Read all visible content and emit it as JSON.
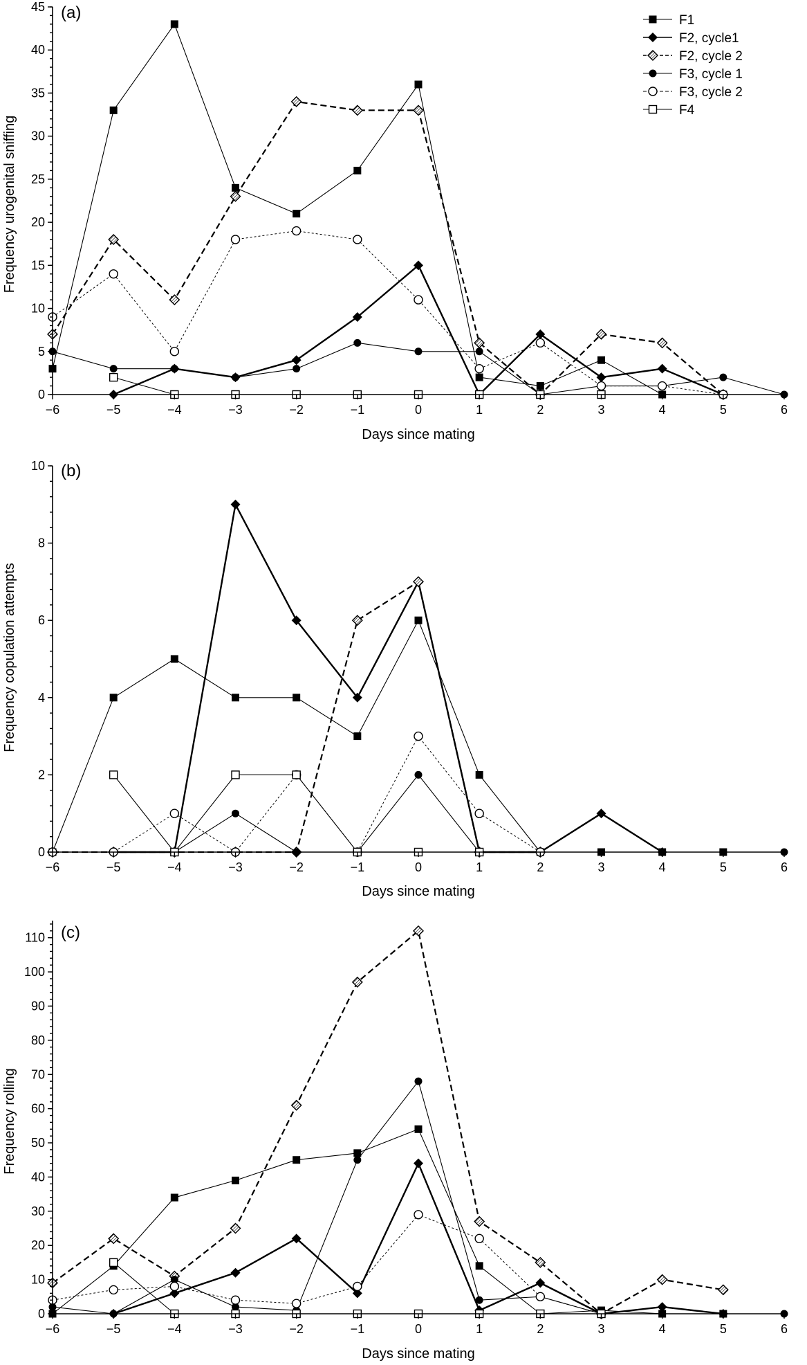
{
  "chart_data": [
    {
      "type": "line",
      "panel_label": "(a)",
      "xlabel": "Days since mating",
      "ylabel": "Frequency urogenital sniffing",
      "xlim": [
        -6,
        6
      ],
      "ylim": [
        0,
        45
      ],
      "xticks": [
        -6,
        -5,
        -4,
        -3,
        -2,
        -1,
        0,
        1,
        2,
        3,
        4,
        5,
        6
      ],
      "xtick_labels": [
        "−6",
        "−5",
        "−4",
        "−3",
        "−2",
        "−1",
        "0",
        "1",
        "2",
        "3",
        "4",
        "5",
        "6"
      ],
      "yticks": [
        0,
        5,
        10,
        15,
        20,
        25,
        30,
        35,
        40,
        45
      ],
      "ytick_labels": [
        "0",
        "5",
        "10",
        "15",
        "20",
        "25",
        "30",
        "35",
        "40",
        "45"
      ],
      "minor_yticks": true,
      "grid": false,
      "legend": {
        "placement": "top-right",
        "entries": [
          "F1",
          "F2, cycle1",
          "F2, cycle 2",
          "F3, cycle 1",
          "F3, cycle 2",
          "F4"
        ]
      },
      "series": [
        {
          "name": "F1",
          "marker": "filled-square",
          "line": "solid-thin",
          "x": [
            -6,
            -5,
            -4,
            -3,
            -2,
            -1,
            0,
            1,
            2,
            3,
            4,
            5
          ],
          "y": [
            3,
            33,
            43,
            24,
            21,
            26,
            36,
            2,
            1,
            4,
            0,
            0
          ]
        },
        {
          "name": "F2, cycle1",
          "marker": "filled-diamond",
          "line": "solid-thick",
          "x": [
            -5,
            -4,
            -3,
            -2,
            -1,
            0,
            1,
            2,
            3,
            4,
            5
          ],
          "y": [
            0,
            3,
            2,
            4,
            9,
            15,
            0,
            7,
            2,
            3,
            0
          ]
        },
        {
          "name": "F2, cycle 2",
          "marker": "hatched-diamond",
          "line": "dashed",
          "x": [
            -6,
            -5,
            -4,
            -3,
            -2,
            -1,
            0,
            1,
            2,
            3,
            4,
            5
          ],
          "y": [
            7,
            18,
            11,
            23,
            34,
            33,
            33,
            6,
            0,
            7,
            6,
            0
          ]
        },
        {
          "name": "F3, cycle 1",
          "marker": "filled-circle",
          "line": "solid-thin",
          "x": [
            -6,
            -5,
            -4,
            -3,
            -2,
            -1,
            0,
            1,
            2,
            3,
            4,
            5,
            6
          ],
          "y": [
            5,
            3,
            3,
            2,
            3,
            6,
            5,
            5,
            0,
            1,
            1,
            2,
            0
          ]
        },
        {
          "name": "F3, cycle 2",
          "marker": "open-circle",
          "line": "dotted",
          "x": [
            -6,
            -5,
            -4,
            -3,
            -2,
            -1,
            0,
            1,
            2,
            3,
            4,
            5
          ],
          "y": [
            9,
            14,
            5,
            18,
            19,
            18,
            11,
            3,
            6,
            1,
            1,
            0
          ]
        },
        {
          "name": "F4",
          "marker": "open-square",
          "line": "solid-thin",
          "x": [
            -5,
            -4,
            -3,
            -2,
            -1,
            0,
            1,
            2,
            3
          ],
          "y": [
            2,
            0,
            0,
            0,
            0,
            0,
            0,
            0,
            0
          ]
        }
      ]
    },
    {
      "type": "line",
      "panel_label": "(b)",
      "xlabel": "Days since mating",
      "ylabel": "Frequency copulation attempts",
      "xlim": [
        -6,
        6
      ],
      "ylim": [
        0,
        10
      ],
      "xticks": [
        -6,
        -5,
        -4,
        -3,
        -2,
        -1,
        0,
        1,
        2,
        3,
        4,
        5,
        6
      ],
      "xtick_labels": [
        "−6",
        "−5",
        "−4",
        "−3",
        "−2",
        "−1",
        "0",
        "1",
        "2",
        "3",
        "4",
        "5",
        "6"
      ],
      "yticks": [
        0,
        2,
        4,
        6,
        8,
        10
      ],
      "ytick_labels": [
        "0",
        "2",
        "4",
        "6",
        "8",
        "10"
      ],
      "minor_yticks": true,
      "grid": false,
      "series": [
        {
          "name": "F1",
          "marker": "filled-square",
          "line": "solid-thin",
          "x": [
            -6,
            -5,
            -4,
            -3,
            -2,
            -1,
            0,
            1,
            2,
            3,
            4,
            5
          ],
          "y": [
            0,
            4,
            5,
            4,
            4,
            3,
            6,
            2,
            0,
            0,
            0,
            0
          ]
        },
        {
          "name": "F2, cycle1",
          "marker": "filled-diamond",
          "line": "solid-thick",
          "x": [
            -5,
            -4,
            -3,
            -2,
            -1,
            0,
            1,
            2,
            3,
            4
          ],
          "y": [
            0,
            0,
            9,
            6,
            4,
            7,
            0,
            0,
            1,
            0
          ]
        },
        {
          "name": "F2, cycle 2",
          "marker": "hatched-diamond",
          "line": "dashed",
          "x": [
            -6,
            -5,
            -4,
            -3,
            -2,
            -1,
            0,
            1,
            2
          ],
          "y": [
            0,
            0,
            0,
            0,
            0,
            6,
            7,
            0,
            0
          ]
        },
        {
          "name": "F3, cycle 1",
          "marker": "filled-circle",
          "line": "solid-thin",
          "x": [
            -6,
            -5,
            -4,
            -3,
            -2,
            -1,
            0,
            1,
            2,
            3,
            4,
            5,
            6
          ],
          "y": [
            0,
            0,
            0,
            1,
            0,
            0,
            2,
            0,
            0,
            0,
            0,
            0,
            0
          ]
        },
        {
          "name": "F3, cycle 2",
          "marker": "open-circle",
          "line": "dotted",
          "x": [
            -6,
            -5,
            -4,
            -3,
            -2,
            -1,
            0,
            1,
            2
          ],
          "y": [
            0,
            0,
            1,
            0,
            2,
            0,
            3,
            1,
            0
          ]
        },
        {
          "name": "F4",
          "marker": "open-square",
          "line": "solid-thin",
          "x": [
            -5,
            -4,
            -3,
            -2,
            -1,
            0,
            1
          ],
          "y": [
            2,
            0,
            2,
            2,
            0,
            0,
            0
          ]
        }
      ]
    },
    {
      "type": "line",
      "panel_label": "(c)",
      "xlabel": "Days since mating",
      "ylabel": "Frequency rolling",
      "xlim": [
        -6,
        6
      ],
      "ylim": [
        0,
        115
      ],
      "xticks": [
        -6,
        -5,
        -4,
        -3,
        -2,
        -1,
        0,
        1,
        2,
        3,
        4,
        5,
        6
      ],
      "xtick_labels": [
        "−6",
        "−5",
        "−4",
        "−3",
        "−2",
        "−1",
        "0",
        "1",
        "2",
        "3",
        "4",
        "5",
        "6"
      ],
      "yticks": [
        0,
        10,
        20,
        30,
        40,
        50,
        60,
        70,
        80,
        90,
        100,
        110
      ],
      "ytick_labels": [
        "0",
        "10",
        "20",
        "30",
        "40",
        "50",
        "60",
        "70",
        "80",
        "90",
        "100",
        "110"
      ],
      "minor_yticks": true,
      "grid": false,
      "series": [
        {
          "name": "F1",
          "marker": "filled-square",
          "line": "solid-thin",
          "x": [
            -6,
            -5,
            -4,
            -3,
            -2,
            -1,
            0,
            1,
            2,
            3,
            4,
            5
          ],
          "y": [
            0,
            14,
            34,
            39,
            45,
            47,
            54,
            14,
            0,
            1,
            0,
            0
          ]
        },
        {
          "name": "F2, cycle1",
          "marker": "filled-diamond",
          "line": "solid-thick",
          "x": [
            -5,
            -4,
            -3,
            -2,
            -1,
            0,
            1,
            2,
            3,
            4,
            5
          ],
          "y": [
            0,
            6,
            12,
            22,
            6,
            44,
            1,
            9,
            0,
            2,
            0
          ]
        },
        {
          "name": "F2, cycle 2",
          "marker": "hatched-diamond",
          "line": "dashed",
          "x": [
            -6,
            -5,
            -4,
            -3,
            -2,
            -1,
            0,
            1,
            2,
            3,
            4,
            5
          ],
          "y": [
            9,
            22,
            11,
            25,
            61,
            97,
            112,
            27,
            15,
            0,
            10,
            7
          ]
        },
        {
          "name": "F3, cycle 1",
          "marker": "filled-circle",
          "line": "solid-thin",
          "x": [
            -6,
            -5,
            -4,
            -3,
            -2,
            -1,
            0,
            1,
            2,
            3,
            4,
            5,
            6
          ],
          "y": [
            2,
            0,
            10,
            2,
            1,
            45,
            68,
            4,
            5,
            0,
            0,
            0,
            0
          ]
        },
        {
          "name": "F3, cycle 2",
          "marker": "open-circle",
          "line": "dotted",
          "x": [
            -6,
            -5,
            -4,
            -3,
            -2,
            -1,
            0,
            1,
            2,
            3
          ],
          "y": [
            4,
            7,
            8,
            4,
            3,
            8,
            29,
            22,
            5,
            0
          ]
        },
        {
          "name": "F4",
          "marker": "open-square",
          "line": "solid-thin",
          "x": [
            -5,
            -4,
            -3,
            -2,
            -1,
            0,
            1,
            2,
            3
          ],
          "y": [
            15,
            0,
            0,
            0,
            0,
            0,
            0,
            0,
            0
          ]
        }
      ]
    }
  ]
}
